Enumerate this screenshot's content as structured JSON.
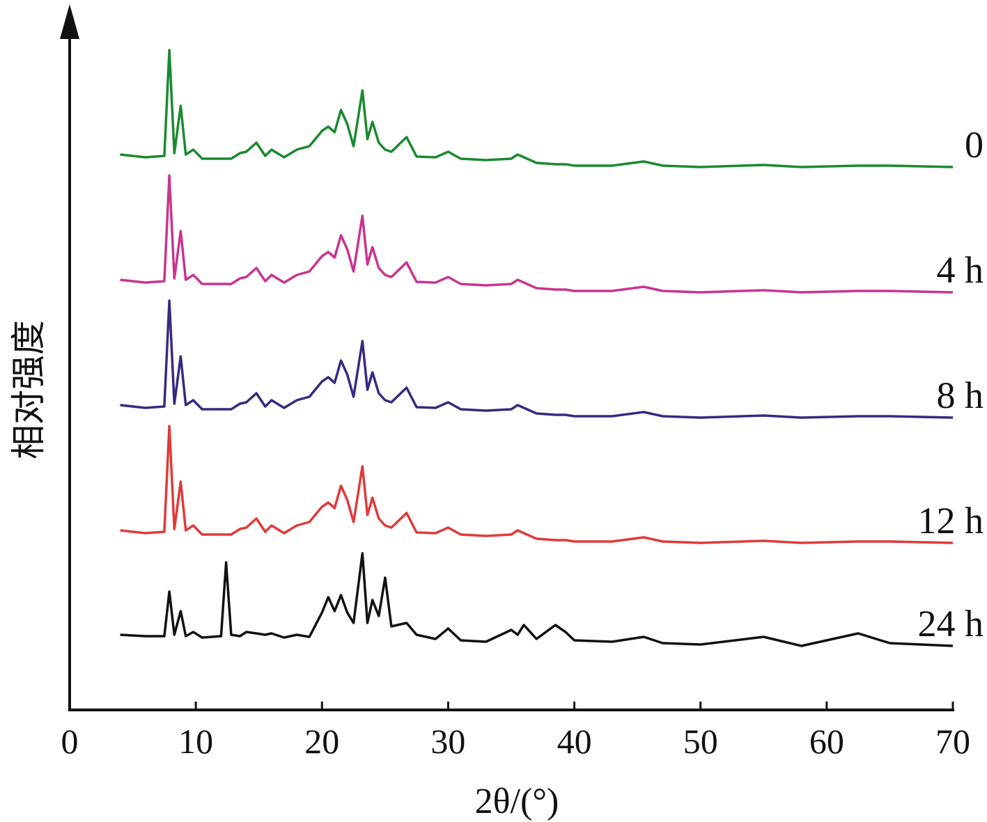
{
  "chart_data": {
    "type": "line",
    "xlabel": "2θ/(°)",
    "ylabel": "相对强度",
    "xlim": [
      0,
      70
    ],
    "xticks": [
      0,
      10,
      20,
      30,
      40,
      50,
      60,
      70
    ],
    "ylim": [
      0,
      96
    ],
    "x": [
      4,
      6,
      7.5,
      7.9,
      8.3,
      8.8,
      9.2,
      9.8,
      10.5,
      12,
      12.4,
      12.8,
      13.5,
      14,
      14.8,
      15.5,
      16,
      17,
      18,
      19,
      20,
      20.5,
      21,
      21.5,
      22,
      22.5,
      23.2,
      23.6,
      24,
      24.5,
      25,
      25.5,
      26.7,
      27.5,
      29,
      30,
      31,
      33,
      35,
      35.5,
      36,
      37,
      38.5,
      39.3,
      40,
      43,
      45.5,
      47,
      50,
      55,
      58,
      62.5,
      65,
      70
    ],
    "series": [
      {
        "name": "0",
        "color": "#1a8a2e",
        "values": [
          79.8,
          79.4,
          79.6,
          94.8,
          80.0,
          86.8,
          79.8,
          80.5,
          79.2,
          79.2,
          79.2,
          79.2,
          80.0,
          80.2,
          81.5,
          79.6,
          80.5,
          79.4,
          80.5,
          81.0,
          83.2,
          83.8,
          83.0,
          86.2,
          84.2,
          81.0,
          89.0,
          82.0,
          84.5,
          81.5,
          80.5,
          80.2,
          82.3,
          79.5,
          79.4,
          80.2,
          79.2,
          79.0,
          79.2,
          79.8,
          79.4,
          78.6,
          78.4,
          78.4,
          78.2,
          78.2,
          78.8,
          78.2,
          78.0,
          78.3,
          78.0,
          78.2,
          78.2,
          78.0
        ]
      },
      {
        "name": "4 h",
        "color": "#c8348f",
        "values": [
          61.8,
          61.4,
          61.6,
          76.8,
          62.0,
          68.8,
          61.8,
          62.5,
          61.2,
          61.2,
          61.2,
          61.2,
          62.0,
          62.2,
          63.5,
          61.6,
          62.5,
          61.4,
          62.5,
          63.0,
          65.2,
          65.8,
          65.0,
          68.2,
          66.2,
          63.0,
          71.0,
          64.0,
          66.5,
          63.5,
          62.5,
          62.2,
          64.3,
          61.5,
          61.4,
          62.2,
          61.2,
          61.0,
          61.2,
          61.8,
          61.4,
          60.6,
          60.4,
          60.4,
          60.2,
          60.2,
          60.8,
          60.2,
          60.0,
          60.3,
          60.0,
          60.2,
          60.2,
          60.0
        ]
      },
      {
        "name": "8 h",
        "color": "#3a2880",
        "values": [
          43.8,
          43.4,
          43.6,
          58.8,
          44.0,
          50.8,
          43.8,
          44.5,
          43.2,
          43.2,
          43.2,
          43.2,
          44.0,
          44.2,
          45.5,
          43.6,
          44.5,
          43.4,
          44.5,
          45.0,
          47.2,
          47.8,
          47.0,
          50.2,
          48.2,
          45.0,
          53.0,
          46.0,
          48.5,
          45.5,
          44.5,
          44.2,
          46.3,
          43.5,
          43.4,
          44.2,
          43.2,
          43.0,
          43.2,
          43.8,
          43.4,
          42.6,
          42.4,
          42.4,
          42.2,
          42.2,
          42.8,
          42.2,
          42.0,
          42.3,
          42.0,
          42.2,
          42.2,
          42.0
        ]
      },
      {
        "name": "12 h",
        "color": "#e03a3a",
        "values": [
          25.8,
          25.4,
          25.6,
          40.8,
          26.0,
          32.8,
          25.8,
          26.5,
          25.2,
          25.2,
          25.2,
          25.2,
          26.0,
          26.2,
          27.5,
          25.6,
          26.5,
          25.4,
          26.5,
          27.0,
          29.2,
          29.8,
          29.0,
          32.2,
          30.2,
          27.0,
          35.0,
          28.0,
          30.5,
          27.5,
          26.5,
          26.2,
          28.3,
          25.5,
          25.4,
          26.2,
          25.2,
          25.0,
          25.2,
          25.8,
          25.4,
          24.6,
          24.4,
          24.4,
          24.2,
          24.2,
          24.8,
          24.2,
          24.0,
          24.3,
          24.0,
          24.2,
          24.2,
          24.0
        ]
      },
      {
        "name": "24 h",
        "color": "#111111",
        "values": [
          10.8,
          10.6,
          10.6,
          17.0,
          10.8,
          14.2,
          10.6,
          11.2,
          10.4,
          10.6,
          21.2,
          10.8,
          10.6,
          11.2,
          11.0,
          10.8,
          11.0,
          10.4,
          10.8,
          10.5,
          14.0,
          16.2,
          14.2,
          16.5,
          14.0,
          12.5,
          22.5,
          12.5,
          15.8,
          13.5,
          19.0,
          12.0,
          12.5,
          10.8,
          10.2,
          11.7,
          10.0,
          9.8,
          11.5,
          10.8,
          12.2,
          10.2,
          12.2,
          11.2,
          10.0,
          9.8,
          10.5,
          9.6,
          9.4,
          10.5,
          9.2,
          11.0,
          9.6,
          9.2
        ]
      }
    ]
  }
}
